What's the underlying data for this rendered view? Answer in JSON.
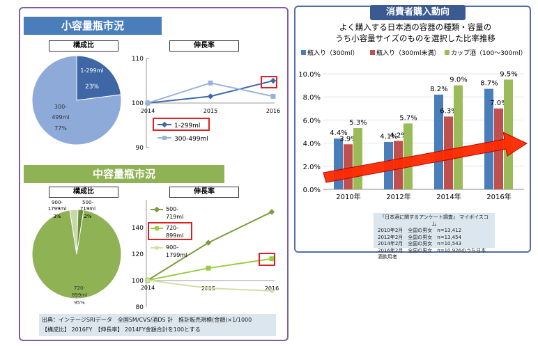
{
  "small": {
    "title": "小容量瓶市況",
    "comp_label": "構成比",
    "growth_label": "伸長率",
    "pie": {
      "slices": [
        {
          "name": "1-299ml",
          "pct": "23%",
          "value": 23,
          "color": "#3f67a6"
        },
        {
          "name": "300-\n499ml",
          "name_a": "300-",
          "name_b": "499ml",
          "pct": "77%",
          "value": 77,
          "color": "#8eaad8"
        }
      ]
    },
    "line": {
      "years": [
        "2014",
        "2015",
        "2016"
      ],
      "ylim": [
        90,
        110
      ],
      "yticks": [
        "110",
        "100",
        "90"
      ],
      "series": [
        {
          "name": "1-299ml",
          "values": [
            100,
            101.5,
            105
          ],
          "color": "#3f67a6"
        },
        {
          "name": "300-499ml",
          "values": [
            100,
            104.5,
            101.5
          ],
          "color": "#9ab3db"
        }
      ]
    }
  },
  "mid": {
    "title": "中容量瓶市況",
    "comp_label": "構成比",
    "growth_label": "伸長率",
    "pie": {
      "slices": [
        {
          "name_a": "720-",
          "name_b": "899ml",
          "pct": "95%",
          "value": 95,
          "color": "#8fb255"
        },
        {
          "name_a": "900-",
          "name_b": "1799ml",
          "pct": "3%",
          "value": 3,
          "color": "#c8d9a8"
        },
        {
          "name_a": "500-",
          "name_b": "719ml",
          "pct": "2%",
          "value": 2,
          "color": "#6d8f3a"
        }
      ]
    },
    "line": {
      "years": [
        "2014",
        "2015",
        "2016"
      ],
      "ylim": [
        80,
        160
      ],
      "yticks": [
        "140",
        "120",
        "100",
        "80"
      ],
      "series": [
        {
          "name_a": "500-",
          "name_b": "719ml",
          "values": [
            100,
            128,
            151
          ],
          "color": "#7c9c3e"
        },
        {
          "name_a": "720-",
          "name_b": "899ml",
          "values": [
            100,
            109,
            116
          ],
          "color": "#9acd46"
        },
        {
          "name_a": "900-",
          "name_b": "1799ml",
          "values": [
            100,
            94,
            92
          ],
          "color": "#cfe0a8"
        }
      ]
    }
  },
  "source": {
    "line1": "出典：インテージSRIデータ　全国SM/CVS/酒DS 計　推計販売規模(金額)×1/1000",
    "line2": "【構成比】 2016FY　【伸長率】 2014FY金額合計を100とする"
  },
  "consumer": {
    "title": "消費者購入動向",
    "chart_title_1": "よく購入する日本酒の容器の種類・容量の",
    "chart_title_2": "うち小容量サイズのものを選択した比率推移",
    "survey_title": "「日本酒に関するアンケート調査」 マイボイスコム",
    "survey_rows": [
      "2010年2月　全国の男女　n=13,412",
      "2012年2月　全国の男女　n=13,454",
      "2014年2月　全国の男女　n=10,543",
      "2016年2月　全国の男女　n=10,926のうち日本酒飲用者"
    ]
  },
  "chart_data": {
    "type": "bar",
    "title": "よく購入する日本酒の容器の種類・容量のうち小容量サイズのものを選択した比率推移",
    "categories": [
      "2010年",
      "2012年",
      "2014年",
      "2016年"
    ],
    "ylim": [
      0,
      10
    ],
    "yticks": [
      "0.0%",
      "2.0%",
      "4.0%",
      "6.0%",
      "8.0%",
      "10.0%"
    ],
    "legend_position": "top",
    "series": [
      {
        "name": "瓶入り（300ml）",
        "values": [
          4.4,
          4.1,
          8.2,
          8.7
        ],
        "labels": [
          "4.4%",
          "4.1%",
          "8.2%",
          "8.7%"
        ],
        "color": "#4a7ebb"
      },
      {
        "name": "瓶入り（300ml未満）",
        "values": [
          3.9,
          4.2,
          6.3,
          7.0
        ],
        "labels": [
          "3.9%",
          "4.2%",
          "6.3%",
          "7.0%"
        ],
        "color": "#c0504d"
      },
      {
        "name": "カップ酒（100～300ml）",
        "values": [
          5.3,
          5.7,
          9.0,
          9.5
        ],
        "labels": [
          "5.3%",
          "5.7%",
          "9.0%",
          "9.5%"
        ],
        "color": "#9bbb59"
      }
    ]
  }
}
